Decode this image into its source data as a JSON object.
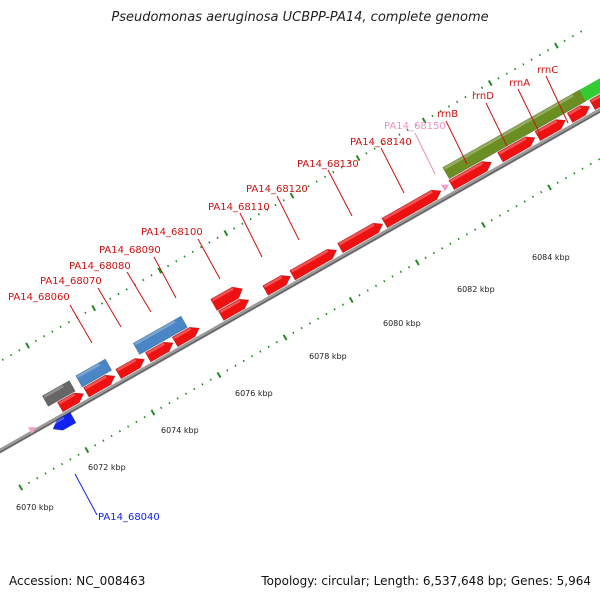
{
  "title": "Pseudomonas aeruginosa UCBPP-PA14, complete genome",
  "footer": {
    "accession": "Accession: NC_008463",
    "summary": "Topology: circular; Length: 6,537,648 bp; Genes: 5,964"
  },
  "colors": {
    "cds": "#ee1111",
    "cds_label": "#cc1111",
    "rrna": "#6b8e23",
    "rrna_label": "#cc1111",
    "trna": "#f4a0c8",
    "trna_label": "#f090c0",
    "misc_blue": "#4a86c5",
    "other_gray": "#666666",
    "minus_strand": "#1122ee",
    "tick": "#228b22"
  },
  "axis": {
    "tick_labels": [
      "6070 kbp",
      "6072 kbp",
      "6074 kbp",
      "6076 kbp",
      "6078 kbp",
      "6080 kbp",
      "6082 kbp",
      "6084 kbp"
    ]
  },
  "features": [
    {
      "label": "PA14_68040",
      "type": "cds_minus"
    },
    {
      "label": "PA14_68060",
      "type": "cds"
    },
    {
      "label": "PA14_68070",
      "type": "misc"
    },
    {
      "label": "PA14_68080",
      "type": "cds"
    },
    {
      "label": "PA14_68090",
      "type": "misc"
    },
    {
      "label": "PA14_68100",
      "type": "cds"
    },
    {
      "label": "PA14_68110",
      "type": "cds"
    },
    {
      "label": "PA14_68120",
      "type": "cds"
    },
    {
      "label": "PA14_68130",
      "type": "cds"
    },
    {
      "label": "PA14_68140",
      "type": "cds"
    },
    {
      "label": "PA14_68150",
      "type": "trna"
    },
    {
      "label": "rrnB",
      "type": "rrna"
    },
    {
      "label": "rrnD",
      "type": "rrna"
    },
    {
      "label": "rrnA",
      "type": "rrna"
    },
    {
      "label": "rrnC",
      "type": "rrna"
    }
  ]
}
